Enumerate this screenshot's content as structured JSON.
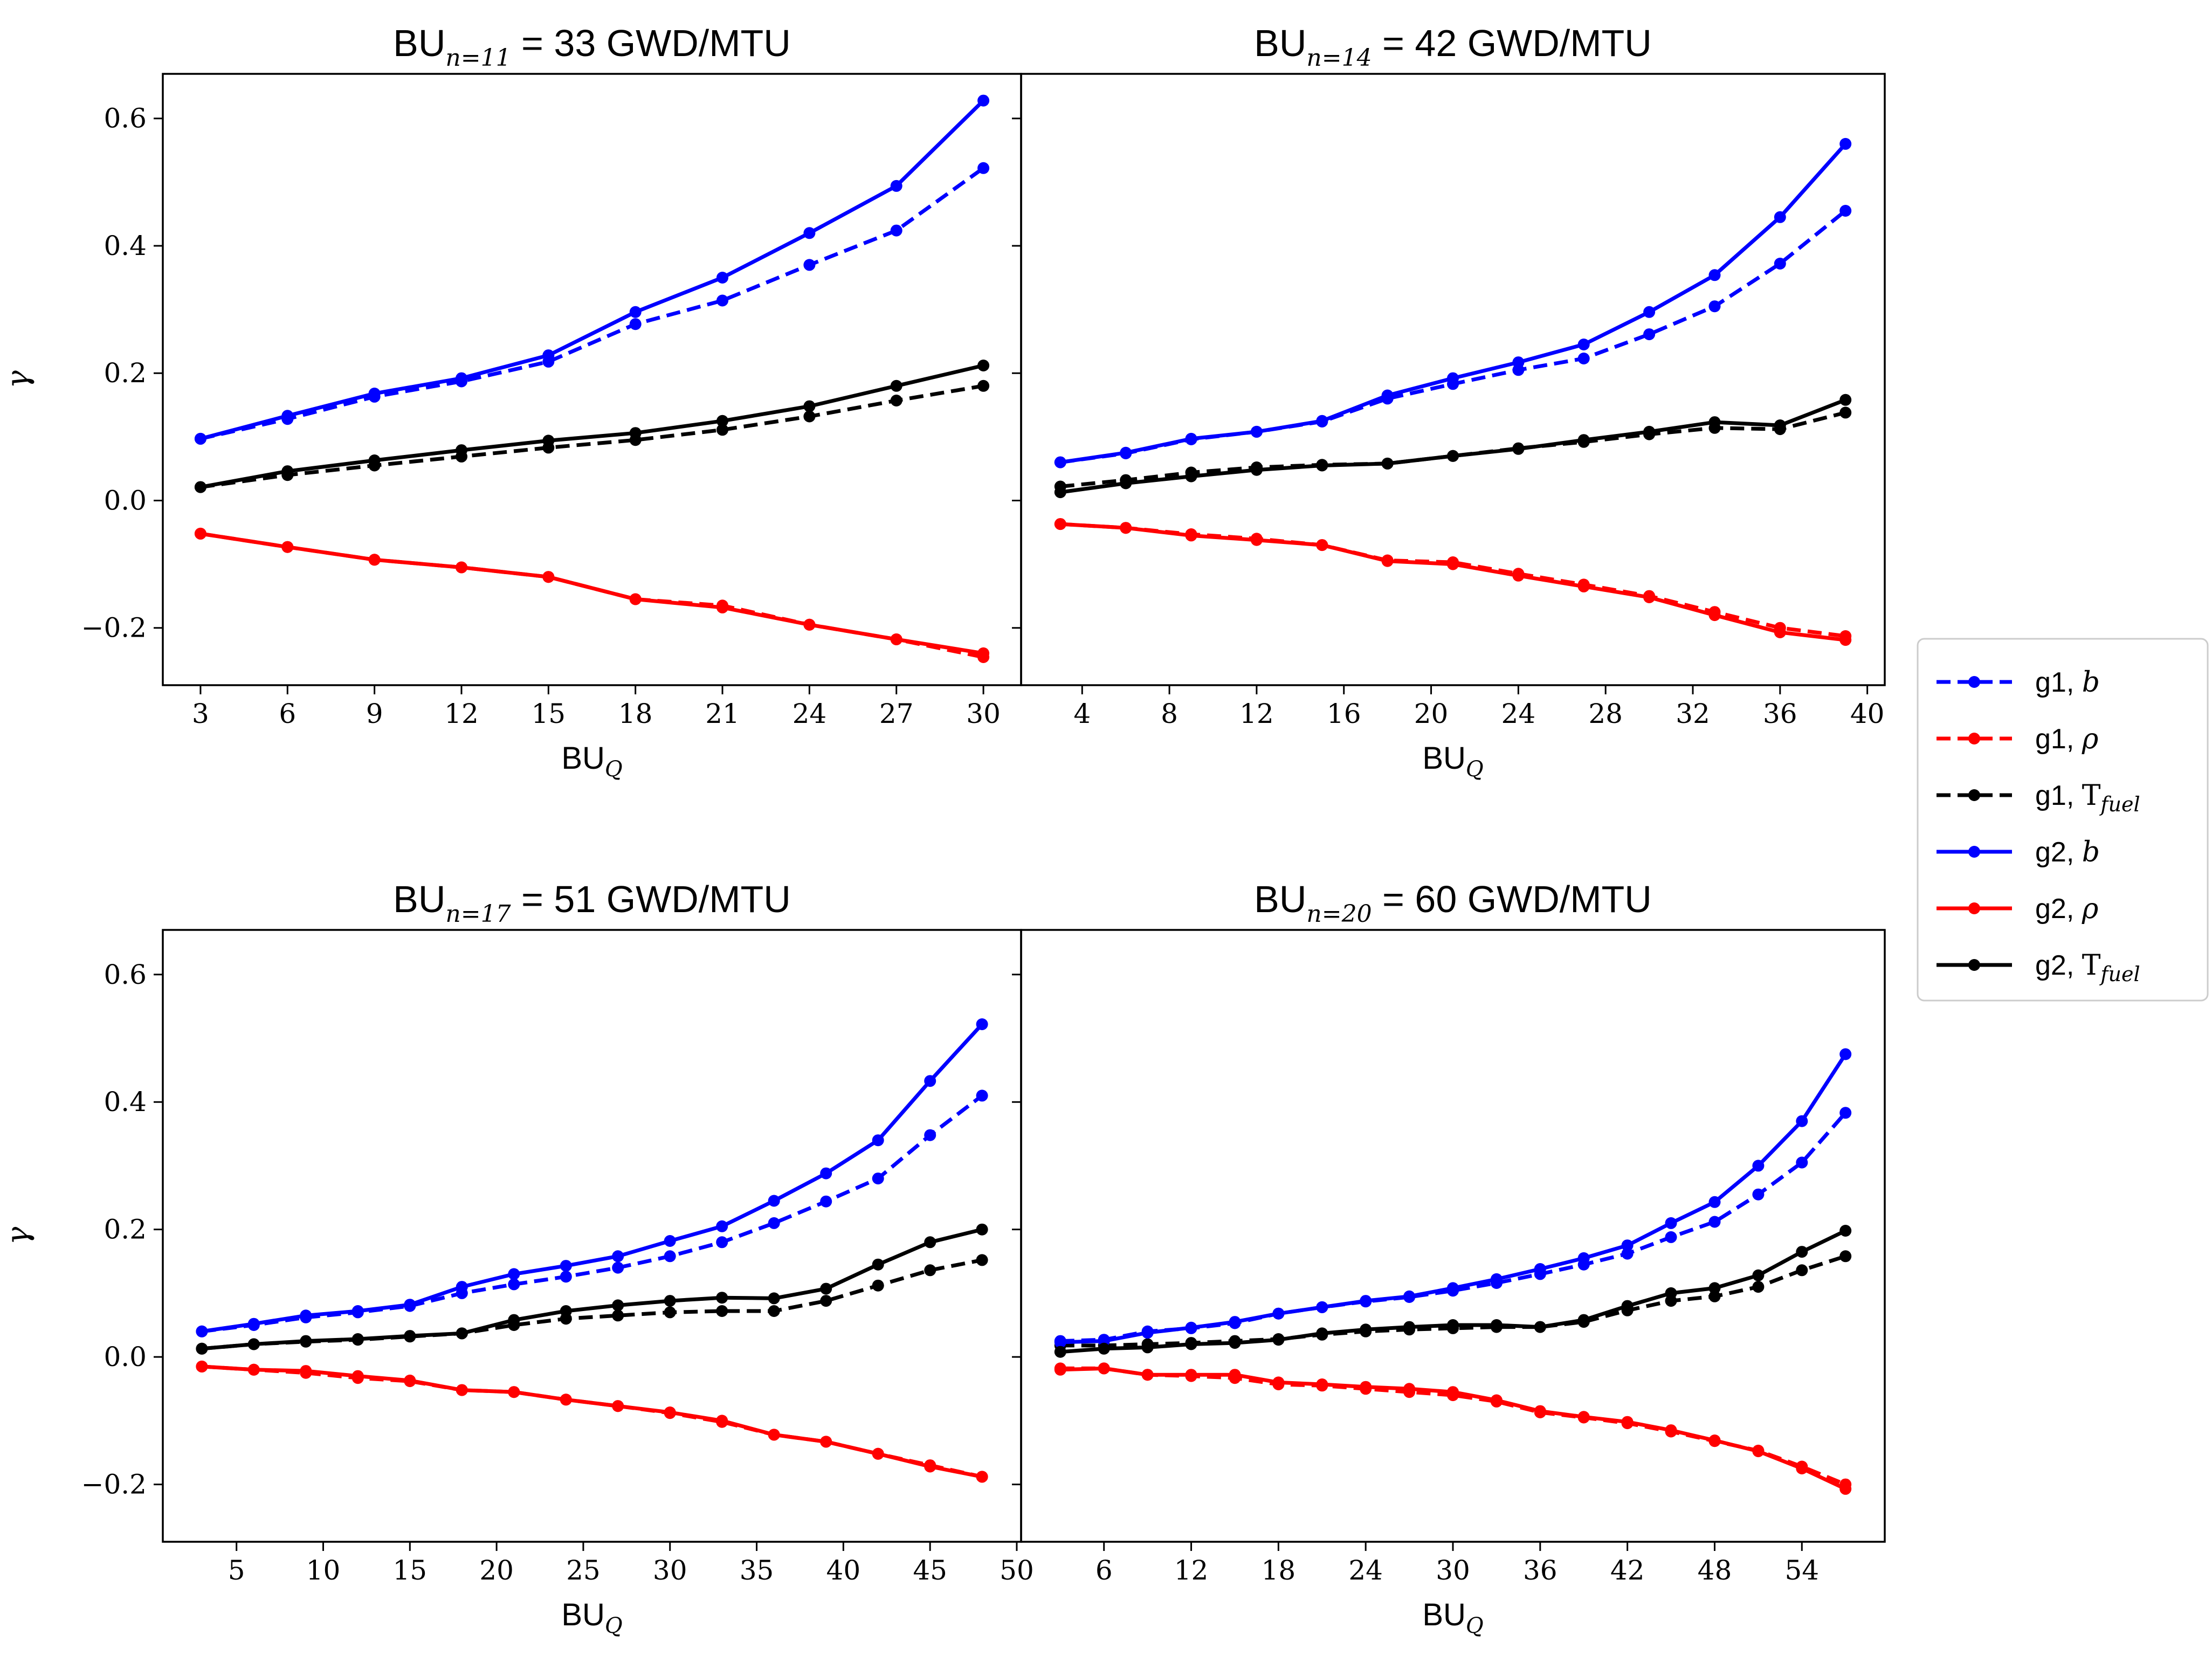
{
  "colors": {
    "blue": "#0000ff",
    "red": "#ff0000",
    "black": "#000000"
  },
  "legend": [
    {
      "group": "g1",
      "var": "b",
      "var_style": "italic",
      "color": "blue",
      "dash": true
    },
    {
      "group": "g1",
      "var": "ρ",
      "var_style": "italic",
      "color": "red",
      "dash": true
    },
    {
      "group": "g1",
      "var": "T",
      "var_sub": "fuel",
      "var_style": "normal",
      "color": "black",
      "dash": true
    },
    {
      "group": "g2",
      "var": "b",
      "var_style": "italic",
      "color": "blue",
      "dash": false
    },
    {
      "group": "g2",
      "var": "ρ",
      "var_style": "italic",
      "color": "red",
      "dash": false
    },
    {
      "group": "g2",
      "var": "T",
      "var_sub": "fuel",
      "var_style": "normal",
      "color": "black",
      "dash": false
    }
  ],
  "chart_data": [
    {
      "type": "line",
      "title_main": "BU",
      "title_sub": "n=11",
      "title_rest": " = 33 GWD/MTU",
      "xlabel_main": "BU",
      "xlabel_sub": "Q",
      "ylabel": "γ",
      "xlim": [
        1.7,
        31.3
      ],
      "ylim": [
        -0.29,
        0.67
      ],
      "xticks": [
        3,
        6,
        9,
        12,
        15,
        18,
        21,
        24,
        27,
        30
      ],
      "yticks": [
        -0.2,
        0.0,
        0.2,
        0.4,
        0.6
      ],
      "ytick_labels": [
        "−0.2",
        "0.0",
        "0.2",
        "0.4",
        "0.6"
      ],
      "x": [
        3,
        6,
        9,
        12,
        15,
        18,
        21,
        24,
        27,
        30
      ],
      "series": [
        {
          "name": "g1, b",
          "color": "blue",
          "dash": true,
          "values": [
            0.097,
            0.128,
            0.163,
            0.187,
            0.218,
            0.277,
            0.314,
            0.37,
            0.424,
            0.522
          ]
        },
        {
          "name": "g1, ρ",
          "color": "red",
          "dash": true,
          "values": [
            -0.052,
            -0.073,
            -0.093,
            -0.105,
            -0.12,
            -0.155,
            -0.165,
            -0.195,
            -0.218,
            -0.246
          ]
        },
        {
          "name": "g1, Tfuel",
          "color": "black",
          "dash": true,
          "values": [
            0.021,
            0.04,
            0.055,
            0.069,
            0.083,
            0.095,
            0.111,
            0.132,
            0.157,
            0.18
          ]
        },
        {
          "name": "g2, b",
          "color": "blue",
          "dash": false,
          "values": [
            0.097,
            0.133,
            0.168,
            0.192,
            0.228,
            0.296,
            0.35,
            0.42,
            0.494,
            0.628
          ]
        },
        {
          "name": "g2, ρ",
          "color": "red",
          "dash": false,
          "values": [
            -0.052,
            -0.073,
            -0.093,
            -0.105,
            -0.12,
            -0.155,
            -0.168,
            -0.195,
            -0.218,
            -0.24
          ]
        },
        {
          "name": "g2, Tfuel",
          "color": "black",
          "dash": false,
          "values": [
            0.021,
            0.046,
            0.063,
            0.079,
            0.094,
            0.106,
            0.125,
            0.148,
            0.18,
            0.212
          ]
        }
      ]
    },
    {
      "type": "line",
      "title_main": "BU",
      "title_sub": "n=14",
      "title_rest": " = 42 GWD/MTU",
      "xlabel_main": "BU",
      "xlabel_sub": "Q",
      "ylabel": "",
      "xlim": [
        1.2,
        40.8
      ],
      "ylim": [
        -0.29,
        0.67
      ],
      "xticks": [
        4,
        8,
        12,
        16,
        20,
        24,
        28,
        32,
        36,
        40
      ],
      "yticks": [
        -0.2,
        0.0,
        0.2,
        0.4,
        0.6
      ],
      "ytick_labels": [],
      "x": [
        3,
        6,
        9,
        12,
        15,
        18,
        21,
        24,
        27,
        30,
        33,
        36,
        39
      ],
      "series": [
        {
          "name": "g1, b",
          "color": "blue",
          "dash": true,
          "values": [
            0.06,
            0.074,
            0.096,
            0.108,
            0.124,
            0.16,
            0.183,
            0.205,
            0.223,
            0.261,
            0.305,
            0.372,
            0.455
          ]
        },
        {
          "name": "g1, ρ",
          "color": "red",
          "dash": true,
          "values": [
            -0.037,
            -0.043,
            -0.053,
            -0.06,
            -0.07,
            -0.094,
            -0.097,
            -0.115,
            -0.132,
            -0.15,
            -0.175,
            -0.2,
            -0.213
          ]
        },
        {
          "name": "g1, Tfuel",
          "color": "black",
          "dash": true,
          "values": [
            0.022,
            0.032,
            0.044,
            0.052,
            0.056,
            0.058,
            0.07,
            0.082,
            0.092,
            0.104,
            0.114,
            0.112,
            0.138
          ]
        },
        {
          "name": "g2, b",
          "color": "blue",
          "dash": false,
          "values": [
            0.06,
            0.075,
            0.097,
            0.108,
            0.125,
            0.165,
            0.192,
            0.217,
            0.245,
            0.296,
            0.354,
            0.445,
            0.56
          ]
        },
        {
          "name": "g2, ρ",
          "color": "red",
          "dash": false,
          "values": [
            -0.037,
            -0.043,
            -0.055,
            -0.062,
            -0.07,
            -0.095,
            -0.1,
            -0.118,
            -0.135,
            -0.152,
            -0.18,
            -0.207,
            -0.219
          ]
        },
        {
          "name": "g2, Tfuel",
          "color": "black",
          "dash": false,
          "values": [
            0.013,
            0.027,
            0.038,
            0.048,
            0.055,
            0.058,
            0.07,
            0.081,
            0.095,
            0.108,
            0.123,
            0.118,
            0.158
          ]
        }
      ]
    },
    {
      "type": "line",
      "title_main": "BU",
      "title_sub": "n=17",
      "title_rest": " = 51 GWD/MTU",
      "xlabel_main": "BU",
      "xlabel_sub": "Q",
      "ylabel": "γ",
      "xlim": [
        0.75,
        50.25
      ],
      "ylim": [
        -0.29,
        0.67
      ],
      "xticks": [
        5,
        10,
        15,
        20,
        25,
        30,
        35,
        40,
        45,
        50
      ],
      "yticks": [
        -0.2,
        0.0,
        0.2,
        0.4,
        0.6
      ],
      "ytick_labels": [
        "−0.2",
        "0.0",
        "0.2",
        "0.4",
        "0.6"
      ],
      "x": [
        3,
        6,
        9,
        12,
        15,
        18,
        21,
        24,
        27,
        30,
        33,
        36,
        39,
        42,
        45,
        48
      ],
      "series": [
        {
          "name": "g1, b",
          "color": "blue",
          "dash": true,
          "values": [
            0.04,
            0.05,
            0.062,
            0.07,
            0.08,
            0.1,
            0.114,
            0.126,
            0.14,
            0.158,
            0.18,
            0.21,
            0.244,
            0.28,
            0.348,
            0.41
          ]
        },
        {
          "name": "g1, ρ",
          "color": "red",
          "dash": true,
          "values": [
            -0.015,
            -0.02,
            -0.025,
            -0.033,
            -0.038,
            -0.052,
            -0.055,
            -0.067,
            -0.077,
            -0.088,
            -0.102,
            -0.122,
            -0.133,
            -0.152,
            -0.17,
            -0.188
          ]
        },
        {
          "name": "g1, Tfuel",
          "color": "black",
          "dash": true,
          "values": [
            0.013,
            0.02,
            0.024,
            0.027,
            0.032,
            0.037,
            0.05,
            0.06,
            0.065,
            0.07,
            0.072,
            0.072,
            0.088,
            0.112,
            0.136,
            0.152
          ]
        },
        {
          "name": "g2, b",
          "color": "blue",
          "dash": false,
          "values": [
            0.04,
            0.052,
            0.065,
            0.072,
            0.082,
            0.11,
            0.13,
            0.143,
            0.158,
            0.182,
            0.205,
            0.245,
            0.288,
            0.34,
            0.433,
            0.522
          ]
        },
        {
          "name": "g2, ρ",
          "color": "red",
          "dash": false,
          "values": [
            -0.015,
            -0.02,
            -0.022,
            -0.03,
            -0.037,
            -0.052,
            -0.055,
            -0.067,
            -0.077,
            -0.087,
            -0.1,
            -0.122,
            -0.133,
            -0.152,
            -0.172,
            -0.188
          ]
        },
        {
          "name": "g2, Tfuel",
          "color": "black",
          "dash": false,
          "values": [
            0.013,
            0.02,
            0.025,
            0.028,
            0.033,
            0.037,
            0.058,
            0.072,
            0.081,
            0.088,
            0.093,
            0.092,
            0.107,
            0.145,
            0.18,
            0.2
          ]
        }
      ]
    },
    {
      "type": "line",
      "title_main": "BU",
      "title_sub": "n=20",
      "title_rest": " = 60 GWD/MTU",
      "xlabel_main": "BU",
      "xlabel_sub": "Q",
      "ylabel": "",
      "xlim": [
        0.3,
        59.7
      ],
      "ylim": [
        -0.29,
        0.67
      ],
      "xticks": [
        6,
        12,
        18,
        24,
        30,
        36,
        42,
        48,
        54
      ],
      "yticks": [
        -0.2,
        0.0,
        0.2,
        0.4,
        0.6
      ],
      "ytick_labels": [],
      "x": [
        3,
        6,
        9,
        12,
        15,
        18,
        21,
        24,
        27,
        30,
        33,
        36,
        39,
        42,
        45,
        48,
        51,
        54,
        57
      ],
      "series": [
        {
          "name": "g1, b",
          "color": "blue",
          "dash": true,
          "values": [
            0.025,
            0.027,
            0.04,
            0.045,
            0.053,
            0.068,
            0.078,
            0.087,
            0.094,
            0.104,
            0.116,
            0.13,
            0.145,
            0.162,
            0.188,
            0.212,
            0.255,
            0.305,
            0.383
          ]
        },
        {
          "name": "g1, ρ",
          "color": "red",
          "dash": true,
          "values": [
            -0.018,
            -0.018,
            -0.028,
            -0.03,
            -0.033,
            -0.043,
            -0.045,
            -0.05,
            -0.055,
            -0.06,
            -0.07,
            -0.087,
            -0.095,
            -0.104,
            -0.117,
            -0.132,
            -0.147,
            -0.172,
            -0.2
          ]
        },
        {
          "name": "g1, Tfuel",
          "color": "black",
          "dash": true,
          "values": [
            0.018,
            0.018,
            0.02,
            0.022,
            0.025,
            0.028,
            0.035,
            0.04,
            0.043,
            0.045,
            0.047,
            0.047,
            0.055,
            0.073,
            0.088,
            0.095,
            0.11,
            0.136,
            0.158
          ]
        },
        {
          "name": "g2, b",
          "color": "blue",
          "dash": false,
          "values": [
            0.023,
            0.025,
            0.038,
            0.046,
            0.055,
            0.068,
            0.078,
            0.088,
            0.095,
            0.108,
            0.122,
            0.138,
            0.155,
            0.175,
            0.21,
            0.243,
            0.3,
            0.37,
            0.475
          ]
        },
        {
          "name": "g2, ρ",
          "color": "red",
          "dash": false,
          "values": [
            -0.02,
            -0.018,
            -0.028,
            -0.028,
            -0.028,
            -0.04,
            -0.043,
            -0.047,
            -0.05,
            -0.055,
            -0.068,
            -0.085,
            -0.094,
            -0.102,
            -0.115,
            -0.131,
            -0.148,
            -0.175,
            -0.207
          ]
        },
        {
          "name": "g2, Tfuel",
          "color": "black",
          "dash": false,
          "values": [
            0.008,
            0.013,
            0.015,
            0.02,
            0.022,
            0.027,
            0.037,
            0.043,
            0.047,
            0.05,
            0.05,
            0.047,
            0.058,
            0.08,
            0.1,
            0.108,
            0.128,
            0.165,
            0.198
          ]
        }
      ]
    }
  ]
}
